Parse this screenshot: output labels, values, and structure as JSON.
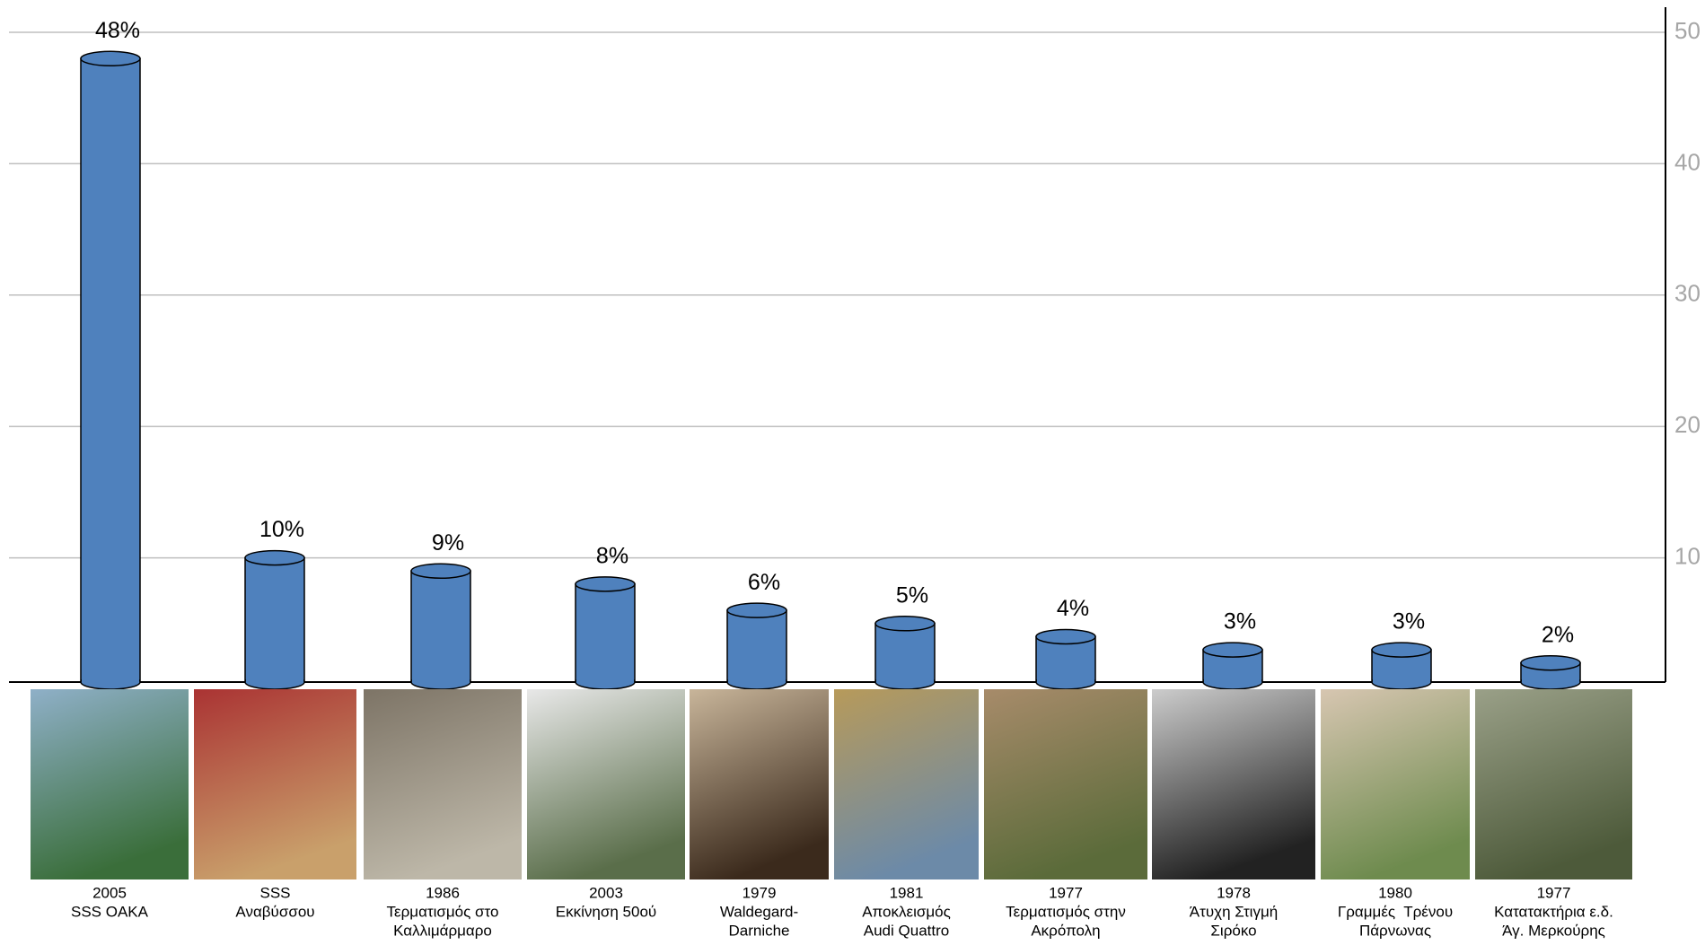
{
  "chart_data": {
    "type": "cylinder-bar",
    "categories": [
      [
        "2005",
        "SSS OAKA"
      ],
      [
        "SSS",
        "Αναβύσσου"
      ],
      [
        "1986",
        "Τερματισμός στο",
        "Καλλιμάρμαρο"
      ],
      [
        "2003",
        "Εκκίνηση 50ού"
      ],
      [
        "1979",
        "Waldegard-",
        "Darniche"
      ],
      [
        "1981",
        "Αποκλεισμός",
        "Audi Quattro"
      ],
      [
        "1977",
        "Τερματισμός στην",
        "Ακρόπολη"
      ],
      [
        "1978",
        "Άτυχη Στιγμή",
        "Σιρόκο"
      ],
      [
        "1980",
        "Γραμμές  Τρένου",
        "Πάρνωνας"
      ],
      [
        "1977",
        "Κατατακτήρια ε.δ.",
        "Άγ. Μερκούρης"
      ]
    ],
    "values": [
      48,
      10,
      9,
      8,
      6,
      5,
      4,
      3,
      3,
      2
    ],
    "value_labels": [
      "48%",
      "10%",
      "9%",
      "8%",
      "6%",
      "5%",
      "4%",
      "3%",
      "3%",
      "2%"
    ],
    "color": "#4f81bd",
    "ylim": [
      0,
      50
    ],
    "yticks": [
      10,
      20,
      30,
      40,
      50
    ],
    "y_axis_side": "right",
    "grid": true
  }
}
